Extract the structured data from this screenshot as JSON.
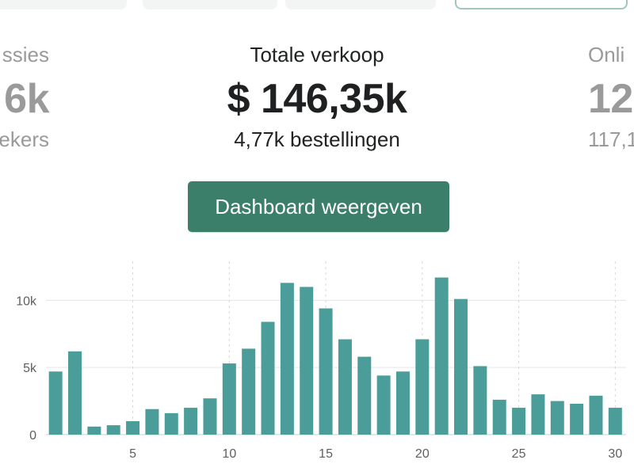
{
  "metrics": {
    "left": {
      "label": "ssies",
      "value": "6k",
      "sub": "ekers"
    },
    "main": {
      "label": "Totale verkoop",
      "value": "$ 146,35k",
      "sub": "4,77k bestellingen"
    },
    "right": {
      "label": "Onli",
      "value": "12",
      "sub": "117,1"
    }
  },
  "button": {
    "label": "Dashboard weergeven"
  },
  "colors": {
    "accent": "#3b7f6a",
    "bar": "#4a9d98",
    "side_text": "#9a9a9a"
  },
  "chart_data": {
    "type": "bar",
    "title": "",
    "xlabel": "",
    "ylabel": "",
    "x": [
      1,
      2,
      3,
      4,
      5,
      6,
      7,
      8,
      9,
      10,
      11,
      12,
      13,
      14,
      15,
      16,
      17,
      18,
      19,
      20,
      21,
      22,
      23,
      24,
      25,
      26,
      27,
      28,
      29,
      30
    ],
    "values": [
      4700,
      6200,
      600,
      700,
      1000,
      1900,
      1600,
      2000,
      2700,
      5300,
      6400,
      8400,
      11300,
      11000,
      9400,
      7100,
      5800,
      4400,
      4700,
      7100,
      11700,
      10100,
      5100,
      2600,
      2000,
      3000,
      2500,
      2300,
      2900,
      2000
    ],
    "x_ticks": [
      5,
      10,
      15,
      20,
      25,
      30
    ],
    "x_tick_labels": [
      "5",
      "10",
      "15",
      "20",
      "25",
      "30"
    ],
    "y_ticks": [
      0,
      5000,
      10000
    ],
    "y_tick_labels": [
      "0",
      "5k",
      "10k"
    ],
    "ylim": [
      0,
      13500
    ],
    "grid": true
  }
}
